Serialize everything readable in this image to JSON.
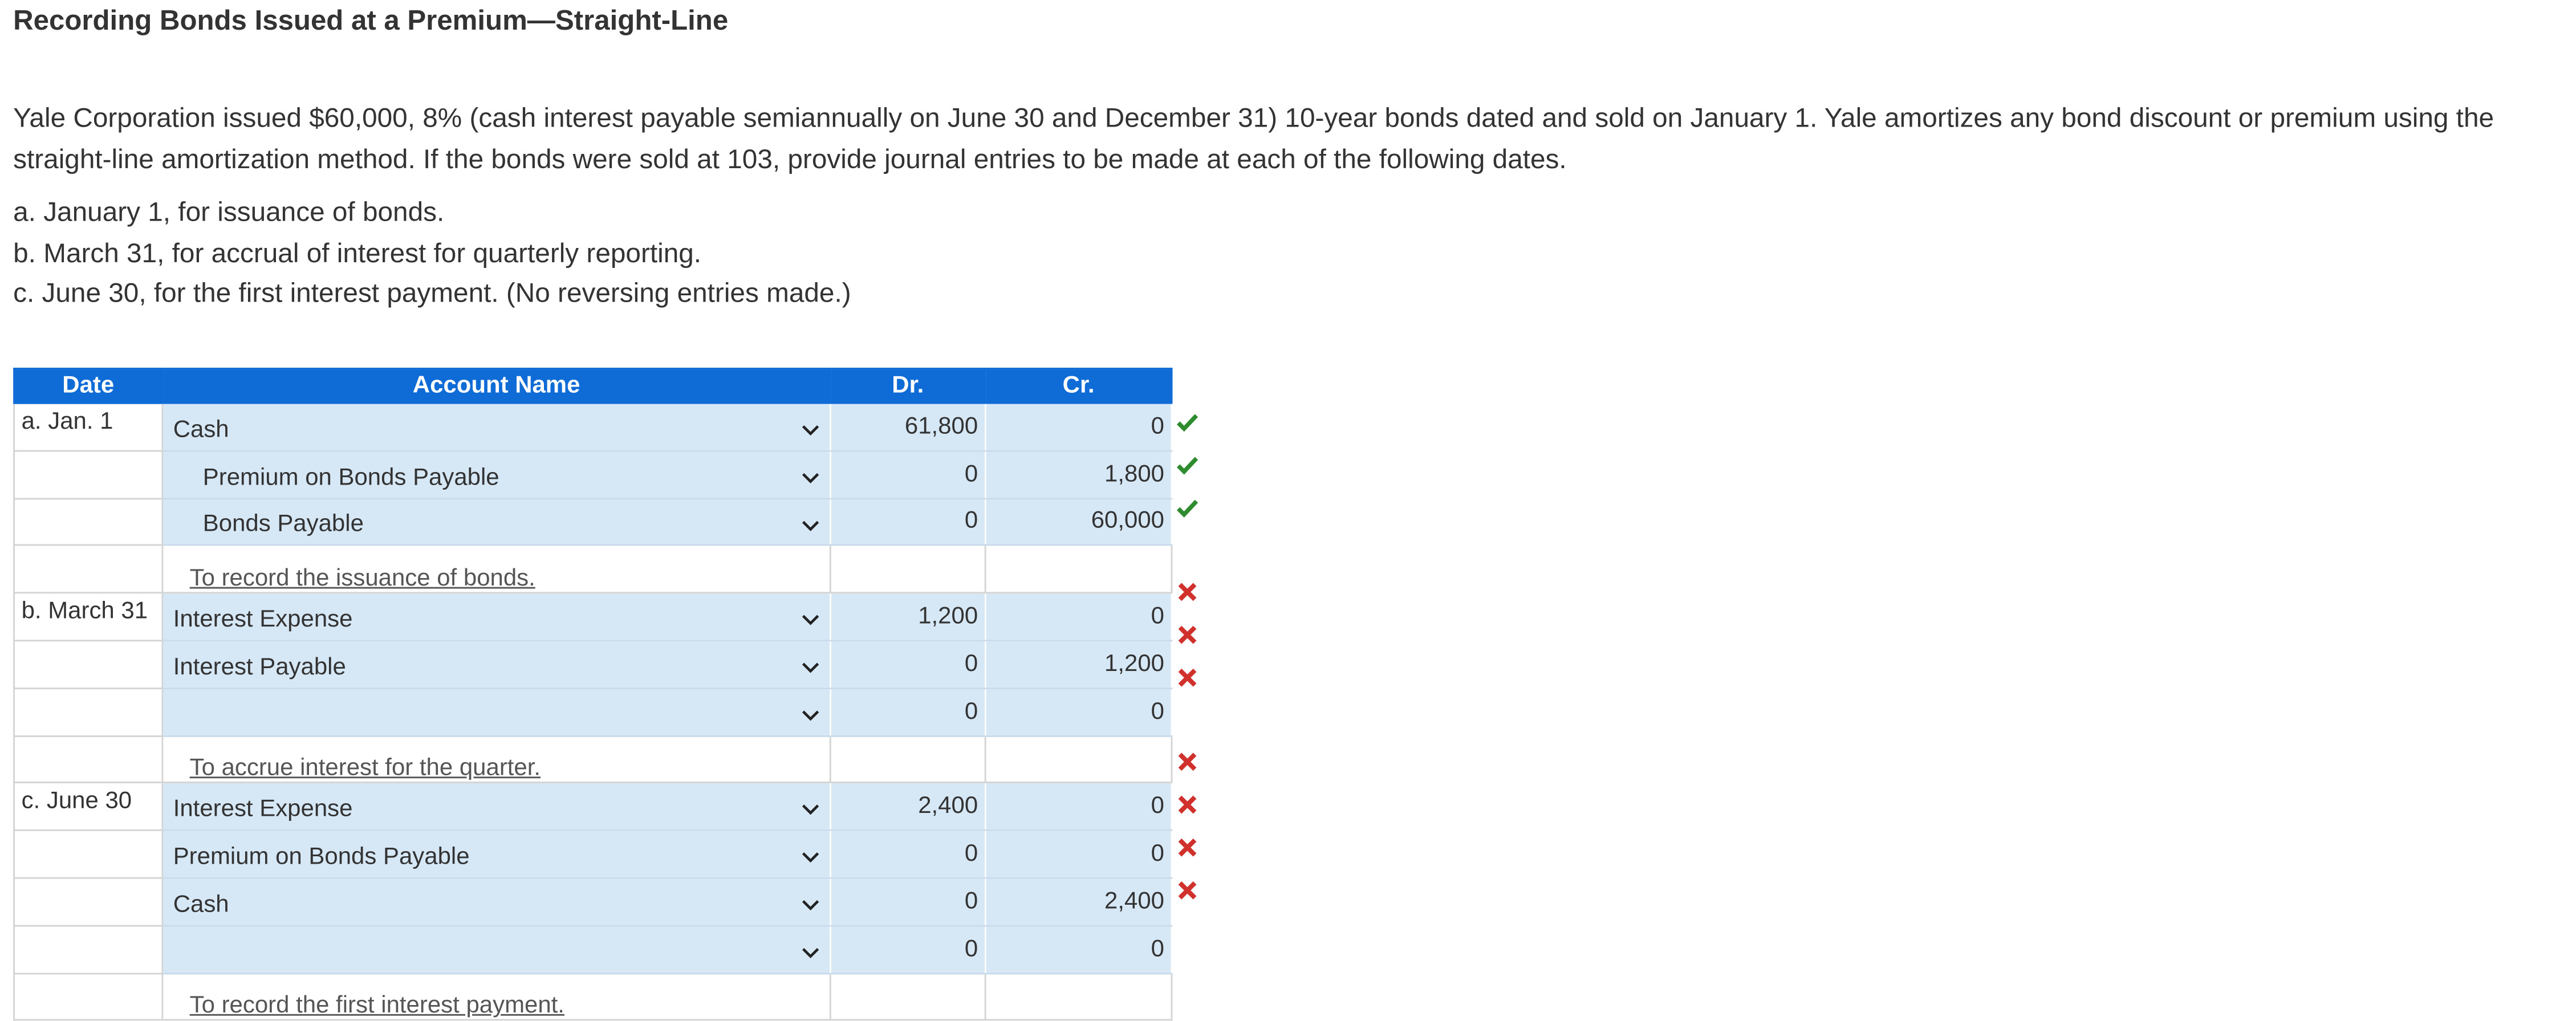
{
  "header": {
    "title": "Recording Bonds Issued at a Premium—Straight-Line"
  },
  "problem": {
    "text": "Yale Corporation issued $60,000, 8% (cash interest payable semiannually on June 30 and December 31) 10-year bonds dated and sold on January 1. Yale amortizes any bond discount or premium using the straight-line amortization method. If the bonds were sold at 103, provide journal entries to be made at each of the following dates.",
    "items": [
      "a. January 1, for issuance of bonds.",
      "b. March 31, for accrual of interest for quarterly reporting.",
      "c. June 30, for the first interest payment. (No reversing entries made.)"
    ]
  },
  "table": {
    "columns": [
      "Date",
      "Account Name",
      "Dr.",
      "Cr."
    ],
    "rows": [
      {
        "date": "a. Jan. 1",
        "account": "Cash",
        "dr": "61,800",
        "cr": "0",
        "status": "correct"
      },
      {
        "account": "Premium on Bonds Payable",
        "indent": true,
        "dr": "0",
        "cr": "1,800",
        "status": "correct"
      },
      {
        "account": "Bonds Payable",
        "indent": true,
        "dr": "0",
        "cr": "60,000",
        "status": "correct"
      },
      {
        "memo": "To record the issuance of bonds."
      },
      {
        "date": "b. March 31",
        "account": "Interest Expense",
        "dr": "1,200",
        "cr": "0",
        "status": "incorrect"
      },
      {
        "account": "Interest Payable",
        "dr": "0",
        "cr": "1,200",
        "status": "incorrect"
      },
      {
        "dr": "0",
        "cr": "0",
        "status": "incorrect"
      },
      {
        "memo": "To accrue interest for the quarter."
      },
      {
        "date": "c. June 30",
        "account": "Interest Expense",
        "dr": "2,400",
        "cr": "0",
        "status": "incorrect"
      },
      {
        "account": "Premium on Bonds Payable",
        "dr": "0",
        "cr": "0",
        "status": "incorrect"
      },
      {
        "account": "Cash",
        "dr": "0",
        "cr": "2,400",
        "status": "incorrect"
      },
      {
        "dr": "0",
        "cr": "0",
        "status": "incorrect"
      },
      {
        "memo": "To record the first interest payment."
      }
    ]
  }
}
